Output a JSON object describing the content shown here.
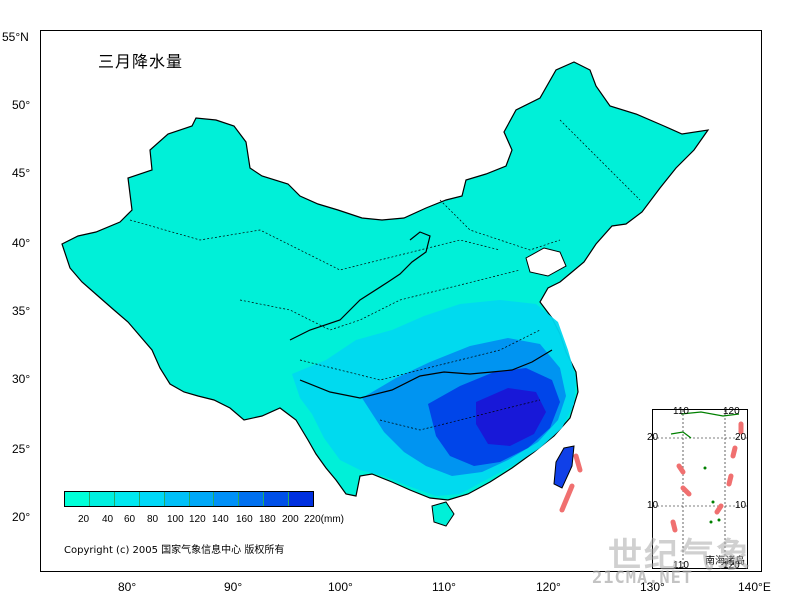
{
  "map": {
    "title": "三月降水量",
    "lat_labels": [
      "55°N",
      "50°",
      "45°",
      "40°",
      "35°",
      "30°",
      "25°",
      "20°"
    ],
    "lon_labels": [
      "80°",
      "90°",
      "100°",
      "110°",
      "120°",
      "130°",
      "140°E"
    ],
    "colors": {
      "base": "#00f0d8",
      "mid": "#00c8f0",
      "high": "#0060f0",
      "peak": "#1010e0",
      "boundary": "#000000",
      "nine_dash": "#f07070"
    }
  },
  "legend": {
    "unit": "(mm)",
    "ticks": [
      "20",
      "40",
      "60",
      "80",
      "100",
      "120",
      "140",
      "160",
      "180",
      "200",
      "220(mm)"
    ],
    "colors": [
      "#00ffd8",
      "#00f0e0",
      "#00e8f0",
      "#00d8f8",
      "#00c0f8",
      "#00a8f8",
      "#0090f8",
      "#0070f0",
      "#0050e8",
      "#0030e0"
    ]
  },
  "copyright": "Copyright (c) 2005 国家气象信息中心 版权所有",
  "inset": {
    "title": "南海诸岛",
    "top_lon_labels": [
      "110",
      "120"
    ],
    "bottom_lon_labels": [
      "110",
      "120"
    ],
    "lat_labels": [
      "20",
      "10"
    ],
    "right_lat_labels": [
      "20",
      "10"
    ]
  },
  "watermark": {
    "text": "世纪气象",
    "url": "21CMA.NET"
  }
}
